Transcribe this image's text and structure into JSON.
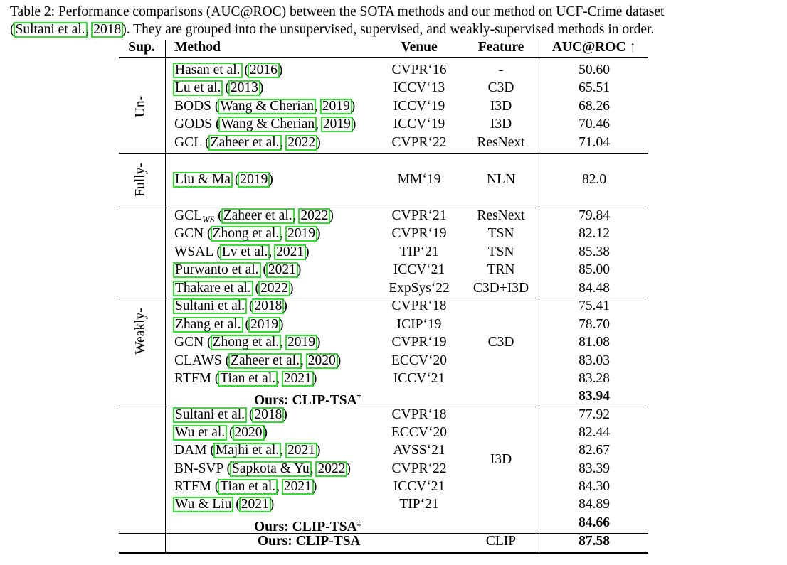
{
  "caption": {
    "line1": "Table 2: Performance comparisons (AUC@ROC) between the SOTA methods and our method on UCF-Crime dataset",
    "line2_open": "(",
    "line2_cite_a": "Sultani et al.",
    "line2_sep": ", ",
    "line2_cite_b": "2018",
    "line2_rest": "). They are grouped into the unsupervised, supervised, and weakly-supervised methods in order."
  },
  "headers": {
    "sup": "Sup.",
    "method": "Method",
    "venue": "Venue",
    "feature": "Feature",
    "auc": "AUC@ROC ↑"
  },
  "groups": {
    "un": "Un-",
    "fully": "Fully-",
    "weakly": "Weakly-"
  },
  "un_rows": [
    {
      "pre": "",
      "a": "Hasan et al.",
      "mid": " (",
      "b": "2016",
      "post": ")",
      "venue": "CVPR‘16",
      "feature": "-",
      "auc": "50.60"
    },
    {
      "pre": "",
      "a": "Lu et al.",
      "mid": " (",
      "b": "2013",
      "post": ")",
      "venue": "ICCV‘13",
      "feature": "C3D",
      "auc": "65.51"
    },
    {
      "pre": "BODS (",
      "a": "Wang & Cherian",
      "mid": ", ",
      "b": "2019",
      "post": ")",
      "venue": "ICCV‘19",
      "feature": "I3D",
      "auc": "68.26"
    },
    {
      "pre": "GODS (",
      "a": "Wang & Cherian",
      "mid": ", ",
      "b": "2019",
      "post": ")",
      "venue": "ICCV‘19",
      "feature": "I3D",
      "auc": "70.46"
    },
    {
      "pre": "GCL (",
      "a": "Zaheer et al.",
      "mid": ", ",
      "b": "2022",
      "post": ")",
      "venue": "CVPR‘22",
      "feature": "ResNext",
      "auc": "71.04"
    }
  ],
  "fully_rows": [
    {
      "pre": "",
      "a": "Liu & Ma",
      "mid": " (",
      "b": "2019",
      "post": ")",
      "venue": "MM‘19",
      "feature": "NLN",
      "auc": "82.0"
    }
  ],
  "weak_rows_a": [
    {
      "pre": "GCL",
      "sub": "WS",
      "pre2": " (",
      "a": "Zaheer et al.",
      "mid": ", ",
      "b": "2022",
      "post": ")",
      "venue": "CVPR‘21",
      "feature": "ResNext",
      "auc": "79.84"
    },
    {
      "pre": "GCN (",
      "a": "Zhong et al.",
      "mid": ", ",
      "b": "2019",
      "post": ")",
      "venue": "CVPR‘19",
      "feature": "TSN",
      "auc": "82.12"
    },
    {
      "pre": "WSAL (",
      "a": "Lv et al.",
      "mid": ", ",
      "b": "2021",
      "post": ")",
      "venue": "TIP‘21",
      "feature": "TSN",
      "auc": "85.38"
    },
    {
      "pre": "",
      "a": "Purwanto et al.",
      "mid": " (",
      "b": "2021",
      "post": ")",
      "venue": "ICCV‘21",
      "feature": "TRN",
      "auc": "85.00"
    },
    {
      "pre": "",
      "a": "Thakare et al.",
      "mid": " (",
      "b": "2022",
      "post": ")",
      "venue": "ExpSys‘22",
      "feature": "C3D+I3D",
      "auc": "84.48"
    }
  ],
  "weak_rows_c3d": [
    {
      "pre": "",
      "a": "Sultani et al.",
      "mid": " (",
      "b": "2018",
      "post": ")",
      "venue": "CVPR‘18",
      "auc": "75.41"
    },
    {
      "pre": "",
      "a": "Zhang et al.",
      "mid": " (",
      "b": "2019",
      "post": ")",
      "venue": "ICIP‘19",
      "auc": "78.70"
    },
    {
      "pre": "GCN (",
      "a": "Zhong et al.",
      "mid": ", ",
      "b": "2019",
      "post": ")",
      "venue": "CVPR‘19",
      "auc": "81.08"
    },
    {
      "pre": "CLAWS (",
      "a": "Zaheer et al.",
      "mid": ", ",
      "b": "2020",
      "post": ")",
      "venue": "ECCV‘20",
      "auc": "83.03"
    },
    {
      "pre": "RTFM (",
      "a": "Tian et al.",
      "mid": ", ",
      "b": "2021",
      "post": ")",
      "venue": "ICCV‘21",
      "auc": "83.28"
    }
  ],
  "c3d_feature": "C3D",
  "ours_c3d": {
    "label": "Ours: CLIP-TSA",
    "mark": "†",
    "auc": "83.94"
  },
  "weak_rows_i3d": [
    {
      "pre": "",
      "a": "Sultani et al.",
      "mid": " (",
      "b": "2018",
      "post": ")",
      "venue": "CVPR‘18",
      "auc": "77.92"
    },
    {
      "pre": "",
      "a": "Wu et al.",
      "mid": " (",
      "b": "2020",
      "post": ")",
      "venue": "ECCV‘20",
      "auc": "82.44"
    },
    {
      "pre": "DAM (",
      "a": "Majhi et al.",
      "mid": ", ",
      "b": "2021",
      "post": ")",
      "venue": "AVSS‘21",
      "auc": "82.67"
    },
    {
      "pre": "BN-SVP (",
      "a": "Sapkota & Yu",
      "mid": ", ",
      "b": "2022",
      "post": ")",
      "venue": "CVPR‘22",
      "auc": "83.39"
    },
    {
      "pre": "RTFM (",
      "a": "Tian et al.",
      "mid": ", ",
      "b": "2021",
      "post": ")",
      "venue": "ICCV‘21",
      "auc": "84.30"
    },
    {
      "pre": "",
      "a": "Wu & Liu",
      "mid": " (",
      "b": "2021",
      "post": ")",
      "venue": "TIP‘21",
      "auc": "84.89"
    }
  ],
  "i3d_feature": "I3D",
  "ours_i3d": {
    "label": "Ours: CLIP-TSA",
    "mark": "‡",
    "auc": "84.66"
  },
  "ours_clip": {
    "label": "Ours: CLIP-TSA",
    "feature": "CLIP",
    "auc": "87.58"
  },
  "colors": {
    "citation_box": "#33dd33",
    "text": "#000000",
    "background": "#ffffff"
  }
}
